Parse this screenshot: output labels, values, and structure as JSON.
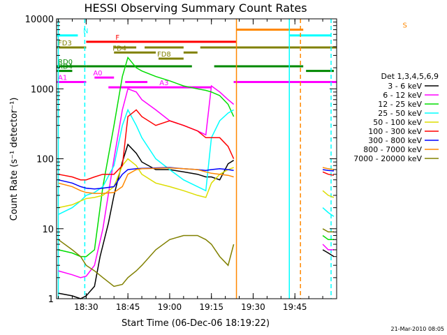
{
  "chart_data": {
    "type": "line",
    "title": "HESSI Observing Summary Count Rates",
    "xlabel": "Start Time (06-Dec-06 18:19:22)",
    "ylabel": "Count Rate (s⁻¹ detector⁻¹)",
    "y_scale": "log",
    "xlim": [
      "18:19:22",
      "20:00:00"
    ],
    "ylim": [
      1,
      10000
    ],
    "x_ticks": [
      "18:30",
      "18:45",
      "19:00",
      "19:15",
      "19:30",
      "19:45"
    ],
    "y_ticks": [
      "1",
      "10",
      "100",
      "1000",
      "10000"
    ],
    "footer": "21-Mar-2010 08:05",
    "legend_title": "Det 1,3,4,5,6,9",
    "series": [
      {
        "name": "3 - 6 keV",
        "color": "#000000",
        "x": [
          "18:20",
          "18:25",
          "18:28",
          "18:30",
          "18:33",
          "18:35",
          "18:38",
          "18:40",
          "18:43",
          "18:45",
          "18:48",
          "18:50",
          "18:55",
          "19:00",
          "19:05",
          "19:10",
          "19:13",
          "19:15",
          "19:18",
          "19:21",
          "19:23"
        ],
        "values": [
          1.2,
          1.1,
          1.0,
          1.1,
          1.5,
          4,
          12,
          30,
          90,
          160,
          120,
          90,
          70,
          70,
          65,
          60,
          55,
          55,
          50,
          85,
          95
        ]
      },
      {
        "name": "6 - 12 keV",
        "color": "#ff00ff",
        "x": [
          "18:20",
          "18:25",
          "18:28",
          "18:30",
          "18:33",
          "18:36",
          "18:40",
          "18:43",
          "18:45",
          "18:48",
          "18:50",
          "18:55",
          "19:00",
          "19:05",
          "19:10",
          "19:13",
          "19:15",
          "19:18",
          "19:21",
          "19:23"
        ],
        "values": [
          2.5,
          2.2,
          2.0,
          2.1,
          3,
          10,
          100,
          500,
          1000,
          900,
          700,
          500,
          350,
          300,
          250,
          220,
          1100,
          900,
          700,
          600
        ]
      },
      {
        "name": "12 - 25 keV",
        "color": "#00dd00",
        "x": [
          "18:20",
          "18:25",
          "18:28",
          "18:30",
          "18:33",
          "18:36",
          "18:40",
          "18:43",
          "18:45",
          "18:48",
          "18:50",
          "18:55",
          "19:00",
          "19:05",
          "19:10",
          "19:13",
          "19:15",
          "19:18",
          "19:21",
          "19:23"
        ],
        "values": [
          5,
          4.5,
          4,
          4,
          5,
          40,
          300,
          1500,
          2800,
          2000,
          1800,
          1500,
          1300,
          1100,
          1000,
          950,
          900,
          800,
          600,
          400
        ]
      },
      {
        "name": "25 - 50 keV",
        "color": "#00ffff",
        "x": [
          "18:20",
          "18:25",
          "18:28",
          "18:30",
          "18:33",
          "18:36",
          "18:40",
          "18:43",
          "18:45",
          "18:48",
          "18:50",
          "18:55",
          "19:00",
          "19:05",
          "19:10",
          "19:13",
          "19:15",
          "19:18",
          "19:21",
          "19:23"
        ],
        "values": [
          16,
          20,
          25,
          30,
          33,
          40,
          80,
          300,
          500,
          300,
          200,
          100,
          70,
          50,
          40,
          35,
          200,
          350,
          450,
          500
        ]
      },
      {
        "name": "50 - 100 keV",
        "color": "#dddd00",
        "x": [
          "18:20",
          "18:25",
          "18:28",
          "18:30",
          "18:33",
          "18:36",
          "18:40",
          "18:43",
          "18:45",
          "18:48",
          "18:50",
          "18:55",
          "19:00",
          "19:05",
          "19:10",
          "19:13",
          "19:15",
          "19:18",
          "19:21",
          "19:23"
        ],
        "values": [
          20,
          22,
          25,
          27,
          28,
          30,
          40,
          80,
          100,
          80,
          60,
          45,
          40,
          35,
          30,
          28,
          45,
          60,
          70,
          75
        ]
      },
      {
        "name": "100 - 300 keV",
        "color": "#ff0000",
        "x": [
          "18:20",
          "18:25",
          "18:28",
          "18:30",
          "18:33",
          "18:36",
          "18:40",
          "18:43",
          "18:45",
          "18:48",
          "18:50",
          "18:55",
          "19:00",
          "19:05",
          "19:10",
          "19:13",
          "19:15",
          "19:18",
          "19:21",
          "19:23"
        ],
        "values": [
          60,
          55,
          50,
          50,
          55,
          60,
          60,
          80,
          400,
          500,
          400,
          300,
          350,
          300,
          250,
          200,
          200,
          200,
          150,
          100
        ]
      },
      {
        "name": "300 - 800 keV",
        "color": "#0000ff",
        "x": [
          "18:20",
          "18:25",
          "18:28",
          "18:30",
          "18:33",
          "18:36",
          "18:40",
          "18:43",
          "18:45",
          "18:48",
          "18:50",
          "18:55",
          "19:00",
          "19:05",
          "19:10",
          "19:13",
          "19:15",
          "19:18",
          "19:21",
          "19:23"
        ],
        "values": [
          50,
          45,
          40,
          38,
          37,
          38,
          40,
          60,
          70,
          72,
          73,
          74,
          75,
          72,
          70,
          68,
          70,
          72,
          70,
          68
        ]
      },
      {
        "name": "800 - 7000 keV",
        "color": "#ff8800",
        "x": [
          "18:20",
          "18:25",
          "18:28",
          "18:30",
          "18:33",
          "18:36",
          "18:40",
          "18:43",
          "18:45",
          "18:48",
          "18:50",
          "18:55",
          "19:00",
          "19:05",
          "19:10",
          "19:13",
          "19:15",
          "19:18",
          "19:21",
          "19:23"
        ],
        "values": [
          45,
          40,
          35,
          33,
          32,
          32,
          33,
          40,
          60,
          70,
          72,
          73,
          74,
          72,
          70,
          65,
          62,
          60,
          58,
          55
        ]
      },
      {
        "name": "7000 - 20000 keV",
        "color": "#808000",
        "x": [
          "18:20",
          "18:25",
          "18:28",
          "18:30",
          "18:33",
          "18:36",
          "18:40",
          "18:43",
          "18:45",
          "18:48",
          "18:50",
          "18:55",
          "19:00",
          "19:05",
          "19:10",
          "19:13",
          "19:15",
          "19:18",
          "19:21",
          "19:23"
        ],
        "values": [
          7,
          5,
          4,
          3,
          2.5,
          2,
          1.5,
          1.6,
          2,
          2.5,
          3,
          5,
          7,
          8,
          8,
          7,
          6,
          4,
          3,
          6
        ]
      }
    ],
    "series_after_gap": {
      "x": [
        "19:55",
        "19:57",
        "19:59"
      ],
      "values": {
        "3 - 6 keV": [
          5,
          4.5,
          4
        ],
        "6 - 12 keV": [
          6,
          5,
          5
        ],
        "12 - 25 keV": [
          8,
          7,
          7
        ],
        "25 - 50 keV": [
          20,
          17,
          15
        ],
        "50 - 100 keV": [
          35,
          30,
          28
        ],
        "100 - 300 keV": [
          65,
          60,
          58
        ],
        "300 - 800 keV": [
          70,
          68,
          67
        ],
        "800 - 7000 keV": [
          75,
          72,
          70
        ],
        "7000 - 20000 keV": [
          10,
          9,
          9
        ]
      }
    },
    "flag_bars": [
      {
        "label": "N",
        "color": "#00ffff",
        "y": 5800,
        "segments": [
          [
            "18:19:22",
            "18:27"
          ],
          [
            "19:43",
            "19:58"
          ]
        ]
      },
      {
        "label": "S",
        "color": "#ff8800",
        "y": 7000,
        "segments": [
          [
            "19:24",
            "19:48"
          ]
        ]
      },
      {
        "label": "F",
        "color": "#ff0000",
        "y": 4700,
        "segments": [
          [
            "18:30",
            "19:24"
          ]
        ]
      },
      {
        "label": "FD3",
        "color": "#808000",
        "y": 3900,
        "segments": [
          [
            "18:19:22",
            "18:30"
          ],
          [
            "18:40",
            "18:48"
          ],
          [
            "18:51",
            "19:05"
          ],
          [
            "19:11",
            "20:00"
          ]
        ]
      },
      {
        "label": "FD4",
        "color": "#808000",
        "y": 3300,
        "segments": [
          [
            "18:40",
            "18:55"
          ],
          [
            "19:05",
            "19:10"
          ]
        ]
      },
      {
        "label": "FD8",
        "color": "#808000",
        "y": 2700,
        "segments": [
          [
            "18:56",
            "19:05"
          ]
        ]
      },
      {
        "label": "RD0",
        "color": "#008800",
        "y": 2100,
        "segments": [
          [
            "18:19:22",
            "18:30"
          ],
          [
            "18:30",
            "19:08"
          ],
          [
            "19:16",
            "19:48"
          ]
        ]
      },
      {
        "label": "RD4",
        "color": "#008800",
        "y": 1800,
        "segments": [
          [
            "18:19:22",
            "18:25"
          ],
          [
            "19:49",
            "19:59"
          ]
        ]
      },
      {
        "label": "A0",
        "color": "#ff00ff",
        "y": 1450,
        "segments": [
          [
            "18:33",
            "18:40"
          ]
        ]
      },
      {
        "label": "A1",
        "color": "#ff00ff",
        "y": 1250,
        "segments": [
          [
            "18:19:22",
            "18:30"
          ],
          [
            "18:44",
            "18:52"
          ],
          [
            "19:23",
            "20:00"
          ]
        ]
      },
      {
        "label": "A3",
        "color": "#ff00ff",
        "y": 1050,
        "segments": [
          [
            "18:38",
            "19:15"
          ]
        ]
      }
    ],
    "vertical_markers": [
      {
        "x": "18:20",
        "color": "#00ffff",
        "dashed": false
      },
      {
        "x": "18:29:30",
        "color": "#00ffff",
        "dashed": true
      },
      {
        "x": "19:24",
        "color": "#ff8800",
        "dashed": false
      },
      {
        "x": "19:43",
        "color": "#00ffff",
        "dashed": false
      },
      {
        "x": "19:47",
        "color": "#ff8800",
        "dashed": true
      },
      {
        "x": "19:58",
        "color": "#00ffff",
        "dashed": true
      }
    ],
    "grid": false,
    "legend_placement": "right"
  }
}
